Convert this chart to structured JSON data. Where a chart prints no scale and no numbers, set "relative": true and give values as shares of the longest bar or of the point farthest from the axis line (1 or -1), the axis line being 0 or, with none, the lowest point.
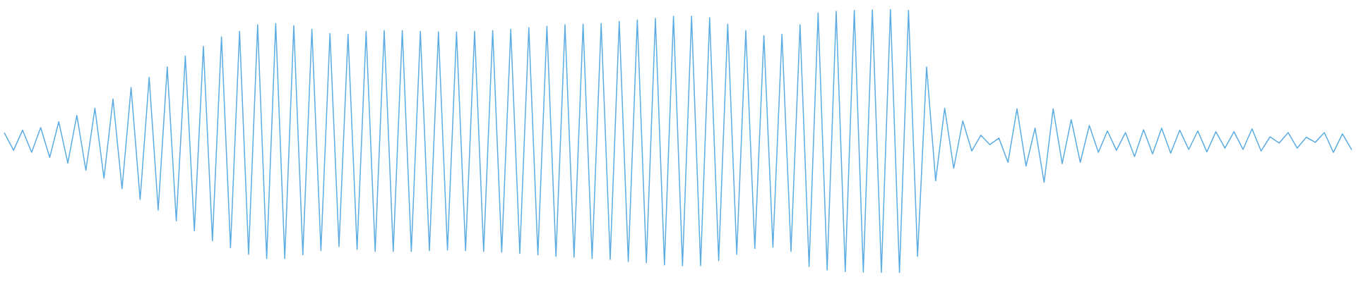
{
  "chart_data": {
    "type": "line",
    "relative": true,
    "line_style": "solid",
    "categories": [
      null,
      null,
      null,
      null,
      null,
      null,
      null,
      null,
      null,
      null,
      null,
      null,
      null,
      null,
      null,
      null,
      null,
      null,
      null,
      null,
      null,
      null,
      null,
      null,
      null,
      null,
      null,
      null,
      null,
      null,
      null,
      null,
      null,
      null,
      null,
      null,
      null,
      null,
      null,
      null,
      null,
      null,
      null,
      null,
      null,
      null,
      null,
      null,
      null,
      null,
      null,
      null,
      null,
      null,
      null,
      null,
      null,
      null,
      null,
      null,
      null,
      null,
      null,
      null,
      null,
      null,
      null,
      null,
      null,
      null,
      null,
      null,
      null,
      null,
      null,
      null,
      null,
      null,
      null,
      null,
      null,
      null,
      null,
      null,
      null,
      null,
      null,
      null,
      null,
      null,
      null,
      null,
      null,
      null,
      null,
      null,
      null,
      null,
      null,
      null,
      null,
      null,
      null,
      null,
      null,
      null,
      null,
      null,
      null,
      null,
      null,
      null,
      null,
      null,
      null,
      null,
      null,
      null,
      null,
      null,
      null,
      null,
      null,
      null,
      null,
      null,
      null,
      null,
      null,
      null,
      null,
      null,
      null,
      null,
      null,
      null,
      null,
      null,
      null,
      null,
      null,
      null,
      null,
      null,
      null,
      null,
      null,
      null,
      null,
      null
    ],
    "series": [
      {
        "color": "#5dade2",
        "values": [
          0.53,
          0.465,
          0.541,
          0.457,
          0.551,
          0.438,
          0.573,
          0.416,
          0.597,
          0.389,
          0.624,
          0.359,
          0.659,
          0.319,
          0.703,
          0.278,
          0.741,
          0.238,
          0.781,
          0.197,
          0.822,
          0.159,
          0.859,
          0.122,
          0.895,
          0.095,
          0.916,
          0.07,
          0.941,
          0.054,
          0.946,
          0.054,
          0.938,
          0.068,
          0.924,
          0.084,
          0.908,
          0.1,
          0.905,
          0.089,
          0.916,
          0.081,
          0.919,
          0.081,
          0.919,
          0.081,
          0.916,
          0.084,
          0.914,
          0.086,
          0.914,
          0.084,
          0.916,
          0.081,
          0.919,
          0.078,
          0.924,
          0.073,
          0.93,
          0.068,
          0.935,
          0.062,
          0.941,
          0.059,
          0.943,
          0.054,
          0.946,
          0.051,
          0.954,
          0.043,
          0.959,
          0.038,
          0.965,
          0.03,
          0.973,
          0.027,
          0.973,
          0.027,
          0.968,
          0.046,
          0.943,
          0.07,
          0.919,
          0.092,
          0.9,
          0.097,
          0.905,
          0.081,
          0.941,
          0.024,
          0.986,
          0.011,
          0.992,
          0.005,
          0.995,
          0.003,
          0.997,
          0,
          1,
          0,
          0.995,
          0.062,
          0.781,
          0.349,
          0.624,
          0.397,
          0.576,
          0.462,
          0.522,
          0.486,
          0.511,
          0.419,
          0.622,
          0.405,
          0.549,
          0.343,
          0.622,
          0.414,
          0.581,
          0.419,
          0.559,
          0.457,
          0.538,
          0.465,
          0.532,
          0.441,
          0.543,
          0.451,
          0.549,
          0.454,
          0.541,
          0.468,
          0.538,
          0.459,
          0.535,
          0.473,
          0.535,
          0.468,
          0.546,
          0.462,
          0.516,
          0.492,
          0.532,
          0.473,
          0.514,
          0.495,
          0.532,
          0.457,
          0.527,
          0.468
        ]
      }
    ]
  }
}
